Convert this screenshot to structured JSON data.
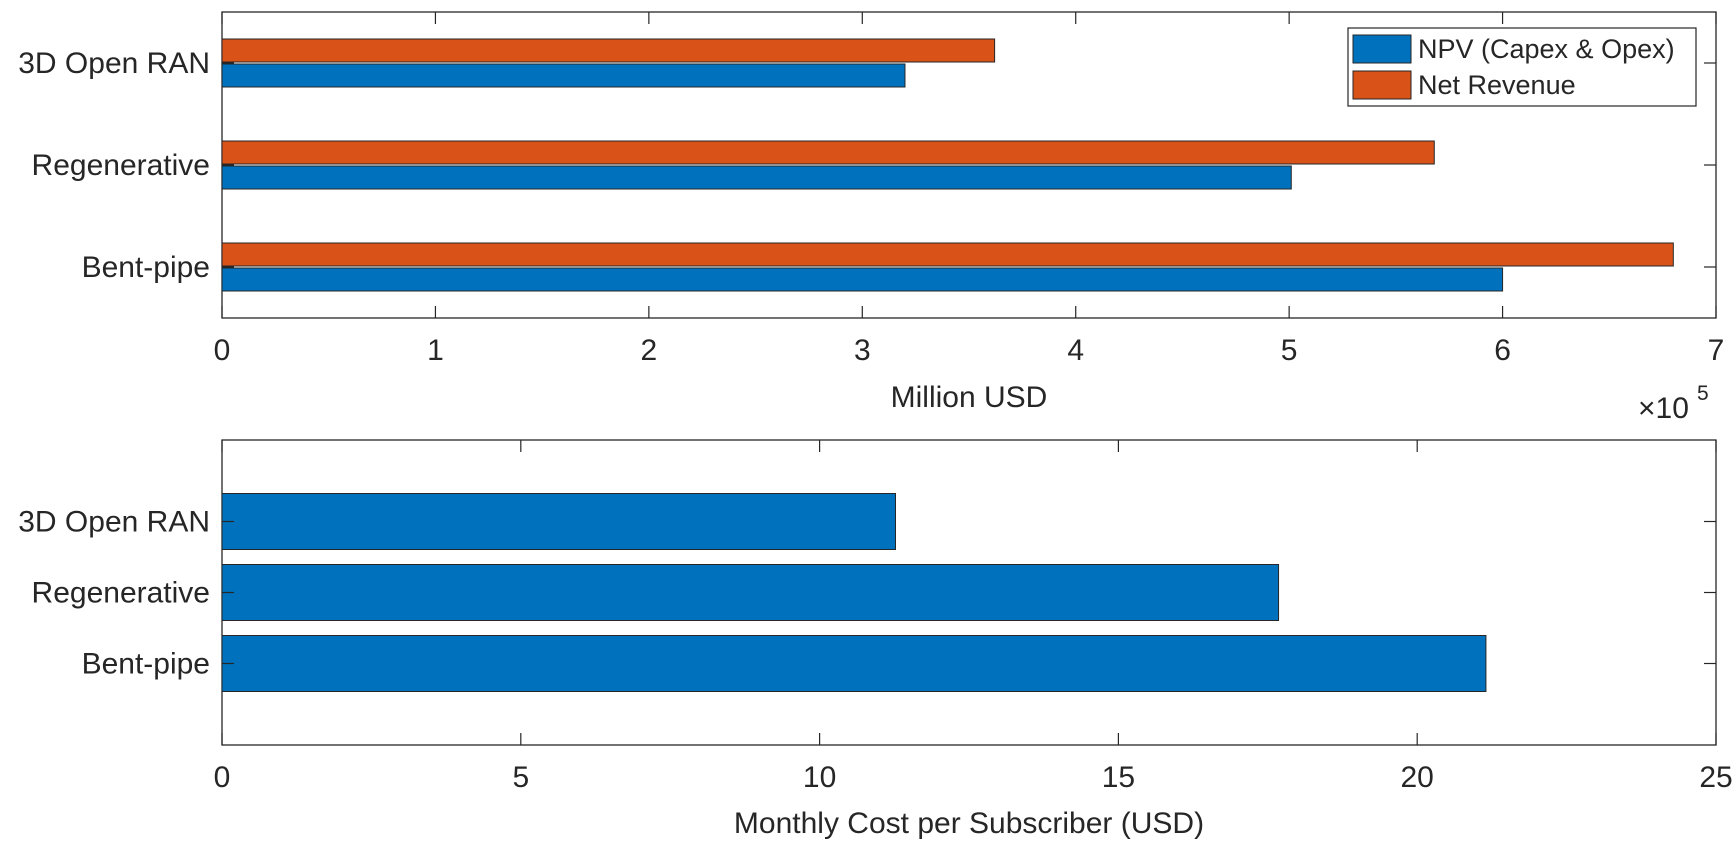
{
  "chart_data": [
    {
      "type": "bar",
      "orientation": "horizontal",
      "categories": [
        "Bent-pipe",
        "Regenerative",
        "3D Open RAN"
      ],
      "series": [
        {
          "name": "NPV (Capex & Opex)",
          "color": "#0072BD",
          "values": [
            6.0,
            5.01,
            3.2
          ]
        },
        {
          "name": "Net Revenue",
          "color": "#D95319",
          "values": [
            6.8,
            5.68,
            3.62
          ]
        }
      ],
      "xlabel": "Million USD",
      "xlim": [
        0,
        7
      ],
      "xticks": [
        0,
        1,
        2,
        3,
        4,
        5,
        6,
        7
      ],
      "exponent_label": {
        "base": "×10",
        "power": "5"
      },
      "legend": {
        "position": "top-right"
      },
      "grid": false
    },
    {
      "type": "bar",
      "orientation": "horizontal",
      "categories": [
        "Bent-pipe",
        "Regenerative",
        "3D Open RAN"
      ],
      "series": [
        {
          "name": "Monthly Cost per Subscriber",
          "color": "#0072BD",
          "values": [
            21.15,
            17.68,
            11.27
          ]
        }
      ],
      "xlabel": "Monthly Cost per Subscriber (USD)",
      "xlim": [
        0,
        25
      ],
      "xticks": [
        0,
        5,
        10,
        15,
        20,
        25
      ],
      "grid": false
    }
  ]
}
